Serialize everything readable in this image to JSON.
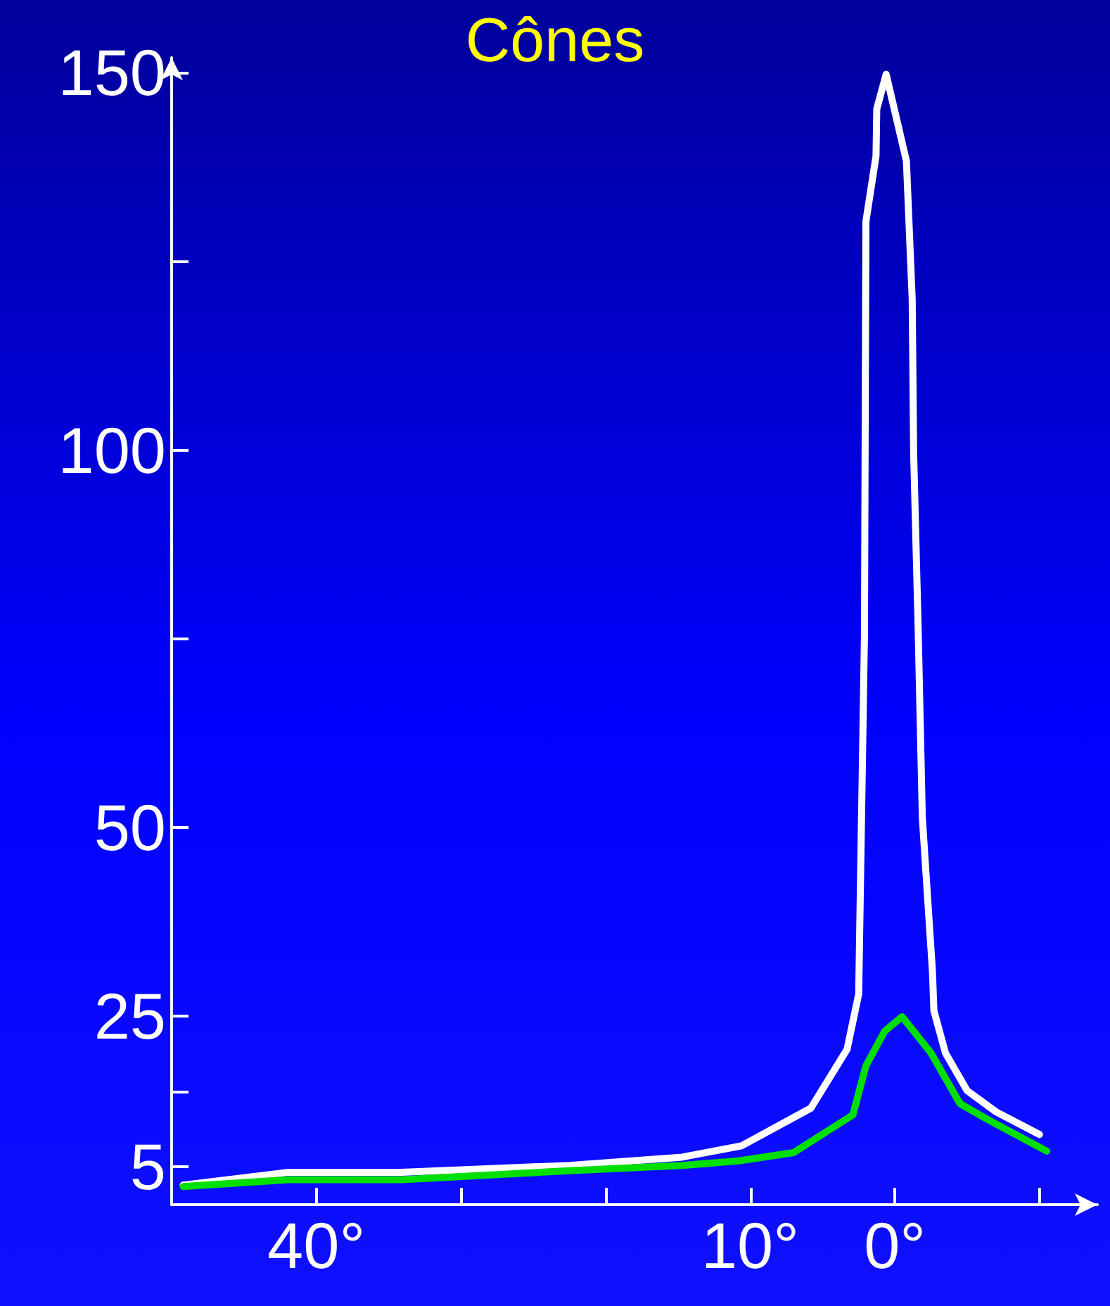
{
  "chart_data": {
    "type": "line",
    "title": "Cônes",
    "xlim": [
      50,
      -14
    ],
    "xticks": [
      {
        "value": 40,
        "label": "40°"
      },
      {
        "value": 30,
        "label": null
      },
      {
        "value": 20,
        "label": null
      },
      {
        "value": 10,
        "label": "10°"
      },
      {
        "value": 0,
        "label": "0°"
      },
      {
        "value": -10,
        "label": null
      }
    ],
    "ylim": [
      0,
      152
    ],
    "yticks": [
      5,
      {
        "value": 15,
        "label": null
      },
      25,
      50,
      {
        "value": 75,
        "label": null
      },
      100,
      {
        "value": 125,
        "label": null
      },
      150
    ],
    "grid": false,
    "marker": "none",
    "line_style": "solid",
    "series": [
      {
        "color": "#ffffff",
        "x": [
          49.2,
          41.9,
          34.1,
          22.5,
          14.7,
          10.6,
          5.8,
          3.3,
          2.5,
          2.1,
          2.0,
          1.3,
          1.25,
          0.6,
          -0.8,
          -1.2,
          -1.3,
          -1.6,
          -1.9,
          -2.6,
          -2.7,
          -3.5,
          -5,
          -7,
          -10
        ],
        "values": [
          2.6,
          4.3,
          4.3,
          5.2,
          6.3,
          7.8,
          12.8,
          20.6,
          27.9,
          75.5,
          130.3,
          139,
          145.2,
          149.8,
          138.3,
          120,
          99.6,
          77.3,
          51.3,
          30.9,
          25.7,
          20.1,
          15.1,
          12.3,
          9.3
        ]
      },
      {
        "color": "#00e000",
        "x": [
          49.2,
          41.9,
          34.1,
          22.5,
          14.7,
          10.8,
          7.0,
          2.9,
          2.0,
          0.7,
          -0.5,
          -2.5,
          -4.5,
          -6.5,
          -10.5
        ],
        "values": [
          2.4,
          3.3,
          3.3,
          4.5,
          5.2,
          5.8,
          6.9,
          11.9,
          18.4,
          23,
          24.9,
          20.1,
          13.4,
          11.2,
          7.1
        ]
      }
    ]
  }
}
